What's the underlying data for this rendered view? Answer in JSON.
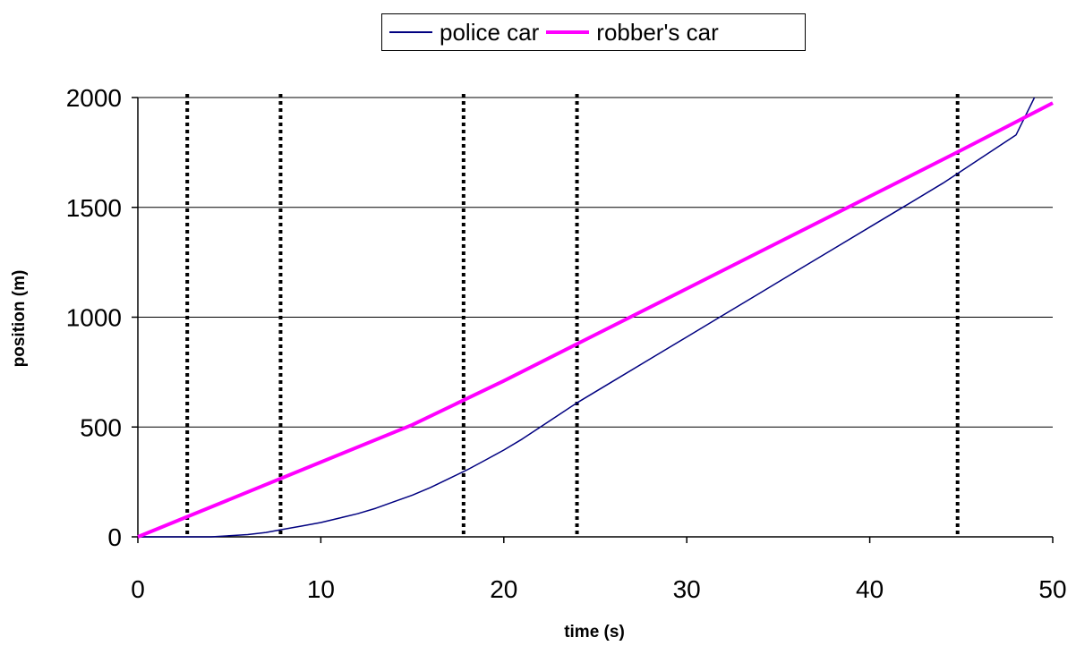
{
  "chart_data": {
    "type": "line",
    "xlabel": "time (s)",
    "ylabel": "position (m)",
    "xlim": [
      0,
      50
    ],
    "ylim": [
      0,
      2000
    ],
    "x_ticks": [
      0,
      10,
      20,
      30,
      40,
      50
    ],
    "y_ticks": [
      0,
      500,
      1000,
      1500,
      2000
    ],
    "grid": "horizontal",
    "legend_position": "top-center",
    "series": [
      {
        "name": "police car",
        "color": "#000080",
        "x": [
          0,
          2,
          4,
          5,
          6,
          7,
          8,
          9,
          10,
          11,
          12,
          13,
          14,
          15,
          16,
          17,
          18,
          19,
          20,
          21,
          22,
          23,
          24,
          26,
          28,
          30,
          32,
          34,
          36,
          38,
          40,
          42,
          44,
          46,
          48,
          49
        ],
        "y": [
          0,
          0,
          0,
          5,
          10,
          20,
          35,
          50,
          65,
          85,
          105,
          130,
          160,
          190,
          225,
          265,
          305,
          350,
          395,
          445,
          500,
          555,
          610,
          710,
          810,
          910,
          1010,
          1110,
          1210,
          1310,
          1410,
          1510,
          1610,
          1720,
          1830,
          2000
        ]
      },
      {
        "name": "robber's car",
        "color": "#ff00ff",
        "x": [
          0,
          5,
          10,
          15,
          20,
          25,
          30,
          35,
          40,
          45,
          50
        ],
        "y": [
          0,
          170,
          340,
          510,
          710,
          920,
          1130,
          1340,
          1550,
          1760,
          1975
        ]
      }
    ],
    "vertical_dotted_lines_x": [
      2.7,
      7.8,
      17.8,
      24,
      44.8
    ]
  }
}
